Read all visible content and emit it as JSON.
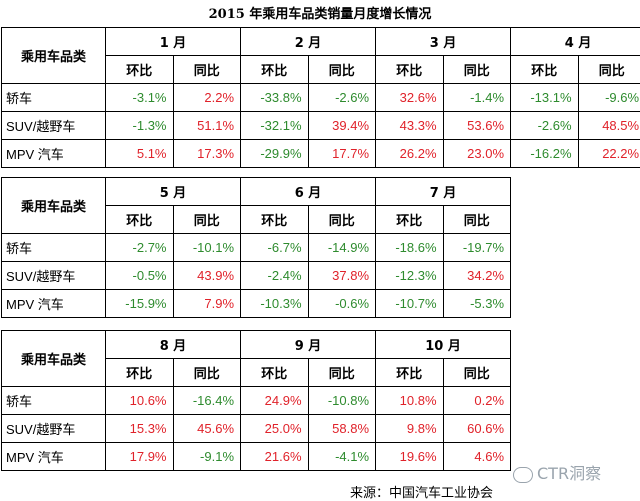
{
  "title": "2015 年乘用车品类销量月度增长情况",
  "source": "来源：中国汽车工业协会",
  "watermark": "CTR洞察",
  "colors": {
    "negative": "#2e8b2e",
    "positive": "#e0222a"
  },
  "category_header": "乘用车品类",
  "sub_headers": [
    "环比",
    "同比"
  ],
  "blocks": [
    {
      "months": [
        "1 月",
        "2 月",
        "3 月",
        "4 月"
      ],
      "rows": [
        {
          "cat": "轿车",
          "vals": [
            "-3.1%",
            "2.2%",
            "-33.8%",
            "-2.6%",
            "32.6%",
            "-1.4%",
            "-13.1%",
            "-9.6%"
          ]
        },
        {
          "cat": "SUV/越野车",
          "vals": [
            "-1.3%",
            "51.1%",
            "-32.1%",
            "39.4%",
            "43.3%",
            "53.6%",
            "-2.6%",
            "48.5%"
          ]
        },
        {
          "cat": "MPV 汽车",
          "vals": [
            "5.1%",
            "17.3%",
            "-29.9%",
            "17.7%",
            "26.2%",
            "23.0%",
            "-16.2%",
            "22.2%"
          ]
        }
      ]
    },
    {
      "months": [
        "5 月",
        "6 月",
        "7 月"
      ],
      "rows": [
        {
          "cat": "轿车",
          "vals": [
            "-2.7%",
            "-10.1%",
            "-6.7%",
            "-14.9%",
            "-18.6%",
            "-19.7%"
          ]
        },
        {
          "cat": "SUV/越野车",
          "vals": [
            "-0.5%",
            "43.9%",
            "-2.4%",
            "37.8%",
            "-12.3%",
            "34.2%"
          ]
        },
        {
          "cat": "MPV 汽车",
          "vals": [
            "-15.9%",
            "7.9%",
            "-10.3%",
            "-0.6%",
            "-10.7%",
            "-5.3%"
          ]
        }
      ]
    },
    {
      "months": [
        "8 月",
        "9 月",
        "10 月"
      ],
      "rows": [
        {
          "cat": "轿车",
          "vals": [
            "10.6%",
            "-16.4%",
            "24.9%",
            "-10.8%",
            "10.8%",
            "0.2%"
          ]
        },
        {
          "cat": "SUV/越野车",
          "vals": [
            "15.3%",
            "45.6%",
            "25.0%",
            "58.8%",
            "9.8%",
            "60.6%"
          ]
        },
        {
          "cat": "MPV 汽车",
          "vals": [
            "17.9%",
            "-9.1%",
            "21.6%",
            "-4.1%",
            "19.6%",
            "4.6%"
          ]
        }
      ]
    }
  ]
}
